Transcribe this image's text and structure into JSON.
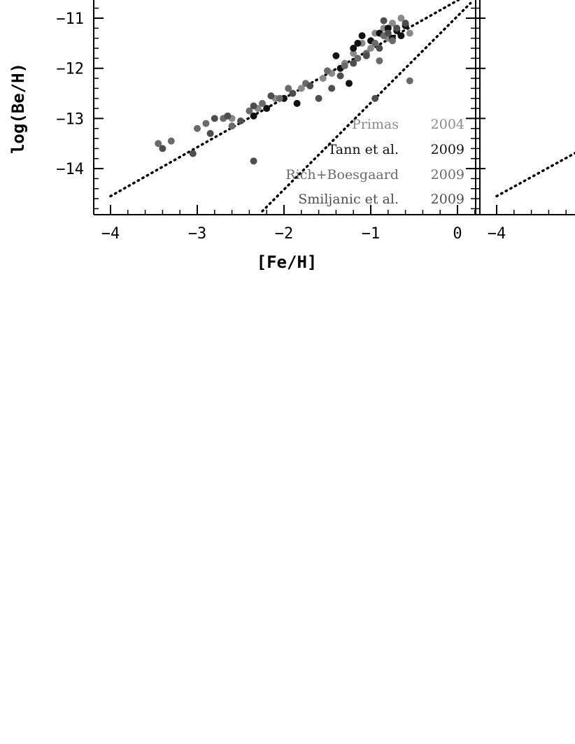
{
  "chart_data": [
    {
      "panel": "left",
      "type": "scatter",
      "xlabel": "[Fe/H]",
      "ylabel": "log(Be/H)",
      "xlim": [
        -4.2,
        0.25
      ],
      "ylim": [
        -14.9,
        -10.6
      ],
      "x_ticks": [
        -4,
        -3,
        -2,
        -1,
        0
      ],
      "y_ticks": [
        -11,
        -12,
        -13,
        -14
      ],
      "x_tick_labels": [
        "−4",
        "−3",
        "−2",
        "−1",
        "0"
      ],
      "y_tick_labels": [
        "−11",
        "−12",
        "−13",
        "−14"
      ],
      "grid": false,
      "legend_position": "bottom-right",
      "legend": [
        {
          "name": "Primas",
          "year": "2004",
          "color": "#8a8a8a"
        },
        {
          "name": "Tann et al.",
          "year": "2009",
          "color": "#111111"
        },
        {
          "name": "Rich+Boesgaard",
          "year": "2009",
          "color": "#6a6a6a"
        },
        {
          "name": "Smiljanic et al.",
          "year": "2009",
          "color": "#4e4e4e"
        }
      ],
      "lines": [
        {
          "style": "dotted",
          "x": [
            -4.0,
            0.15
          ],
          "y": [
            -14.55,
            -10.5
          ]
        },
        {
          "style": "dotted",
          "x": [
            -2.25,
            0.15
          ],
          "y": [
            -14.85,
            -10.7
          ]
        }
      ],
      "series": [
        {
          "name": "Primas",
          "color": "#8a8a8a",
          "x": [
            -2.3,
            -2.1,
            -1.9,
            -1.8,
            -1.55,
            -1.45,
            -1.3,
            -1.2,
            -1.1,
            -0.95,
            -0.85,
            -0.75,
            -0.65,
            -0.55,
            -1.0,
            -0.8,
            -0.7,
            -2.6
          ],
          "y": [
            -12.8,
            -12.6,
            -12.5,
            -12.4,
            -12.2,
            -12.1,
            -11.9,
            -11.7,
            -11.5,
            -11.3,
            -11.2,
            -11.1,
            -11.0,
            -11.3,
            -11.6,
            -11.4,
            -11.2,
            -13.0
          ]
        },
        {
          "name": "Tann et al.",
          "color": "#111111",
          "x": [
            -2.35,
            -2.2,
            -2.0,
            -1.85,
            -1.4,
            -1.25,
            -1.2,
            -1.1,
            -1.0,
            -0.9,
            -0.8,
            -0.75,
            -0.7,
            -0.65,
            -0.6,
            -1.35,
            -1.15
          ],
          "y": [
            -12.95,
            -12.8,
            -12.6,
            -12.7,
            -11.75,
            -12.3,
            -11.6,
            -11.35,
            -11.45,
            -11.3,
            -11.2,
            -11.4,
            -11.25,
            -11.35,
            -11.15,
            -12.0,
            -11.5
          ]
        },
        {
          "name": "Rich+Boesgaard",
          "color": "#6a6a6a",
          "x": [
            -3.45,
            -3.3,
            -3.0,
            -2.9,
            -2.7,
            -2.6,
            -2.4,
            -2.25,
            -2.05,
            -1.95,
            -1.75,
            -1.5,
            -1.3,
            -1.15,
            -1.05,
            -0.95,
            -0.85,
            -0.9,
            -0.75,
            -0.55
          ],
          "y": [
            -13.5,
            -13.45,
            -13.2,
            -13.1,
            -13.0,
            -13.15,
            -12.85,
            -12.7,
            -12.6,
            -12.4,
            -12.3,
            -12.05,
            -11.95,
            -11.8,
            -11.7,
            -11.5,
            -11.35,
            -11.85,
            -11.45,
            -12.25
          ]
        },
        {
          "name": "Smiljanic et al.",
          "color": "#4e4e4e",
          "x": [
            -3.4,
            -3.05,
            -2.85,
            -2.8,
            -2.65,
            -2.5,
            -2.35,
            -2.15,
            -1.9,
            -1.7,
            -1.6,
            -1.45,
            -1.35,
            -1.2,
            -1.05,
            -0.9,
            -0.8,
            -0.7,
            -0.6,
            -0.95,
            -2.35,
            -0.85
          ],
          "y": [
            -13.6,
            -13.7,
            -13.3,
            -13.0,
            -12.95,
            -13.05,
            -12.75,
            -12.55,
            -12.5,
            -12.35,
            -12.6,
            -12.4,
            -12.15,
            -11.9,
            -11.75,
            -11.6,
            -11.3,
            -11.2,
            -11.1,
            -12.6,
            -13.85,
            -11.05
          ]
        }
      ]
    },
    {
      "panel": "right",
      "type": "line",
      "x_ticks": [
        -4
      ],
      "x_tick_labels": [
        "−4"
      ],
      "lines": [
        {
          "style": "dotted",
          "x": [
            -4.0,
            -3.0
          ],
          "y": [
            -14.55,
            -13.6
          ]
        }
      ]
    }
  ]
}
